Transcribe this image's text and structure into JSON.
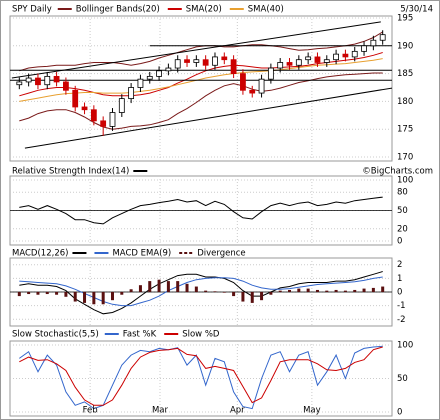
{
  "header": {
    "date": "5/30/14",
    "credit": "©BigCharts.com"
  },
  "chart_data": [
    {
      "type": "candlestick",
      "title": "SPY Daily",
      "open": [
        183.0,
        183.5,
        184.2,
        183.0,
        184.5,
        183.5,
        182,
        179,
        178.5,
        176.5,
        175.5,
        178,
        180.5,
        182.5,
        184,
        184.5,
        185.5,
        186,
        187.5,
        187,
        187.5,
        186.5,
        188,
        187.5,
        185,
        182,
        181.5,
        184,
        186,
        187,
        186.5,
        187.5,
        188,
        187,
        187.5,
        188.5,
        188,
        189,
        190,
        191
      ],
      "high": [
        184.3,
        185.0,
        185.0,
        185.3,
        185.3,
        184.3,
        182.8,
        179.8,
        179.3,
        177.3,
        178.8,
        181.3,
        183.3,
        184.8,
        185.3,
        186.3,
        186.8,
        188.3,
        188.3,
        188.3,
        188.3,
        188.8,
        188.8,
        188.3,
        185.8,
        182.8,
        184.8,
        186.8,
        187.8,
        187.8,
        188.3,
        188.8,
        188.8,
        188.3,
        189.3,
        189.3,
        189.8,
        190.8,
        191.8,
        192.8
      ],
      "low": [
        182.2,
        182.7,
        182.2,
        182.2,
        182.7,
        181.2,
        178.2,
        177.7,
        175.7,
        173.8,
        174.7,
        177.2,
        179.7,
        181.7,
        183.2,
        183.7,
        184.7,
        185.2,
        186.2,
        186.2,
        185.7,
        185.7,
        186.7,
        184.2,
        181.2,
        180.7,
        180.7,
        183.2,
        185.2,
        185.7,
        185.7,
        186.7,
        186.2,
        186.2,
        186.7,
        187.2,
        187.2,
        188.2,
        189.2,
        190.2
      ],
      "close": [
        183.5,
        184.2,
        183.0,
        184.5,
        183.5,
        182,
        179.0,
        178.5,
        176.5,
        175.5,
        178.0,
        180.5,
        182.5,
        184.0,
        184.5,
        185.5,
        186.0,
        187.5,
        187.0,
        187.5,
        186.5,
        188.0,
        187.5,
        185.0,
        182.0,
        181.5,
        184.0,
        186.0,
        187.0,
        186.5,
        187.5,
        188.0,
        187.0,
        187.5,
        188.5,
        188.0,
        189.0,
        190.0,
        191.0,
        192.0
      ],
      "up_color": "#000000",
      "down_color": "#cc0000",
      "series": [
        {
          "name": "Bollinger Bands(20)",
          "color": "#7a1a1a",
          "upper": [
            185.5,
            186,
            186.2,
            186.3,
            186.5,
            186.5,
            186.5,
            186.8,
            187,
            187,
            187,
            186.8,
            186.5,
            186.8,
            187.2,
            187.8,
            188.3,
            188.8,
            189.3,
            189.8,
            190,
            190,
            189.8,
            189.8,
            190,
            190.2,
            190.2,
            190,
            189.8,
            189.5,
            189.2,
            189.3,
            189.5,
            189.6,
            189.8,
            190,
            190.3,
            190.8,
            191.5,
            192.5
          ],
          "lower": [
            176.5,
            177,
            177.8,
            178.3,
            178.5,
            178.5,
            178,
            177.2,
            176.2,
            175.4,
            175,
            175.2,
            175.5,
            175.6,
            175.8,
            176.2,
            176.7,
            177.8,
            178.7,
            179.8,
            181,
            182,
            182.8,
            183.2,
            182.8,
            182.2,
            181.8,
            182,
            182.4,
            182.9,
            183.4,
            183.7,
            184.1,
            184.4,
            184.6,
            184.8,
            184.9,
            185,
            185.1,
            185.1
          ]
        },
        {
          "name": "SMA(20)",
          "color": "#cc0000",
          "values": [
            181,
            181.5,
            182,
            182.3,
            182.5,
            182.5,
            182.3,
            182,
            181.6,
            181.2,
            181,
            181,
            181,
            181.2,
            181.5,
            182,
            182.5,
            183.3,
            184,
            184.8,
            185.5,
            186,
            186.3,
            186.5,
            186.4,
            186.2,
            186,
            186,
            186.1,
            186.2,
            186.3,
            186.5,
            186.8,
            187,
            187.2,
            187.4,
            187.6,
            187.9,
            188.3,
            188.8
          ]
        },
        {
          "name": "SMA(40)",
          "color": "#e8a030",
          "values": [
            180,
            180.3,
            180.6,
            180.9,
            181.2,
            181.4,
            181.5,
            181.6,
            181.6,
            181.5,
            181.5,
            181.5,
            181.6,
            181.8,
            182,
            182.3,
            182.6,
            183,
            183.4,
            183.8,
            184.2,
            184.5,
            184.8,
            185,
            185.2,
            185.3,
            185.4,
            185.5,
            185.7,
            185.9,
            186.1,
            186.3,
            186.5,
            186.6,
            186.7,
            186.8,
            187,
            187.2,
            187.4,
            187.7
          ]
        }
      ],
      "trendlines": [
        {
          "x": [
            -0.8,
            38.8
          ],
          "y": [
            184.2,
            194.3
          ]
        },
        {
          "x": [
            0.6,
            40
          ],
          "y": [
            171.6,
            182.4
          ]
        },
        {
          "x": [
            -1,
            40
          ],
          "y": [
            185.6,
            185.6
          ]
        },
        {
          "x": [
            -1,
            40
          ],
          "y": [
            183.8,
            183.8
          ]
        },
        {
          "x": [
            14,
            40
          ],
          "y": [
            190,
            190
          ]
        }
      ],
      "ylim": [
        170,
        195
      ],
      "yticks": [
        170,
        175,
        180,
        185,
        190,
        195
      ],
      "grid": true
    },
    {
      "type": "line",
      "series": [
        {
          "name": "Relative Strength Index(14)",
          "color": "#000000",
          "values": [
            55,
            58,
            52,
            58,
            52,
            45,
            35,
            35,
            30,
            28,
            38,
            45,
            52,
            58,
            60,
            63,
            65,
            68,
            64,
            66,
            58,
            65,
            60,
            48,
            38,
            36,
            48,
            58,
            62,
            58,
            62,
            64,
            58,
            60,
            64,
            62,
            66,
            68,
            70,
            72
          ]
        }
      ],
      "ref_line": 50,
      "ylim": [
        0,
        100
      ],
      "yticks": [
        0,
        20,
        50,
        80,
        100
      ],
      "grid": true
    },
    {
      "type": "line",
      "series": [
        {
          "name": "MACD(12,26)",
          "color": "#000000",
          "values": [
            0.5,
            0.6,
            0.5,
            0.5,
            0.4,
            0.1,
            -0.5,
            -0.9,
            -1.3,
            -1.6,
            -1.5,
            -1.2,
            -0.8,
            -0.3,
            0.2,
            0.6,
            0.9,
            1.2,
            1.3,
            1.3,
            1.1,
            1.1,
            1.0,
            0.7,
            0.1,
            -0.3,
            -0.3,
            0,
            0.3,
            0.4,
            0.6,
            0.7,
            0.7,
            0.7,
            0.8,
            0.8,
            0.9,
            1.1,
            1.3,
            1.5
          ]
        },
        {
          "name": "MACD EMA(9)",
          "color": "#3366cc",
          "values": [
            0.8,
            0.75,
            0.7,
            0.65,
            0.6,
            0.45,
            0.2,
            -0.1,
            -0.4,
            -0.7,
            -0.9,
            -1.0,
            -1.0,
            -0.8,
            -0.6,
            -0.3,
            0.1,
            0.4,
            0.7,
            0.9,
            1.0,
            1.05,
            1.05,
            1.0,
            0.8,
            0.5,
            0.3,
            0.2,
            0.2,
            0.25,
            0.35,
            0.45,
            0.55,
            0.6,
            0.65,
            0.7,
            0.75,
            0.85,
            1.0,
            1.1
          ]
        },
        {
          "name": "Divergence",
          "color": "#5a1010",
          "kind": "bar",
          "values": [
            -0.3,
            -0.15,
            -0.2,
            -0.15,
            -0.2,
            -0.35,
            -0.7,
            -0.8,
            -0.9,
            -0.9,
            -0.6,
            -0.2,
            0.2,
            0.5,
            0.8,
            0.9,
            0.8,
            0.8,
            0.6,
            0.4,
            0.1,
            0.05,
            -0.05,
            -0.3,
            -0.7,
            -0.8,
            -0.6,
            -0.2,
            0.1,
            0.15,
            0.25,
            0.25,
            0.15,
            0.1,
            0.15,
            0.1,
            0.15,
            0.25,
            0.3,
            0.4
          ]
        }
      ],
      "ref_line": 0,
      "ylim": [
        -2.2,
        2.2
      ],
      "yticks": [
        -2,
        -1,
        0,
        1,
        2
      ],
      "grid": true
    },
    {
      "type": "line",
      "title": "Slow Stochastic(5,5)",
      "series": [
        {
          "name": "Fast %K",
          "color": "#3366cc",
          "values": [
            80,
            90,
            60,
            85,
            70,
            30,
            10,
            15,
            5,
            10,
            40,
            70,
            85,
            92,
            90,
            95,
            93,
            96,
            70,
            85,
            40,
            80,
            75,
            30,
            8,
            5,
            50,
            85,
            90,
            60,
            85,
            90,
            40,
            60,
            85,
            50,
            88,
            95,
            97,
            98
          ]
        },
        {
          "name": "Slow %D",
          "color": "#cc0000",
          "values": [
            75,
            82,
            77,
            78,
            72,
            62,
            37,
            18,
            10,
            10,
            18,
            40,
            65,
            82,
            89,
            92,
            93,
            95,
            86,
            84,
            65,
            68,
            65,
            62,
            38,
            14,
            21,
            47,
            75,
            78,
            78,
            78,
            72,
            63,
            62,
            65,
            74,
            78,
            93,
            97
          ]
        }
      ],
      "ylim": [
        0,
        100
      ],
      "yticks": [
        0,
        50,
        100
      ],
      "grid": true,
      "xlim": [
        -1,
        40
      ],
      "xticks": [
        {
          "value": 7.6,
          "label": "Feb"
        },
        {
          "value": 15.1,
          "label": "Mar"
        },
        {
          "value": 23.4,
          "label": "Apr"
        },
        {
          "value": 31.4,
          "label": "May"
        }
      ]
    }
  ]
}
